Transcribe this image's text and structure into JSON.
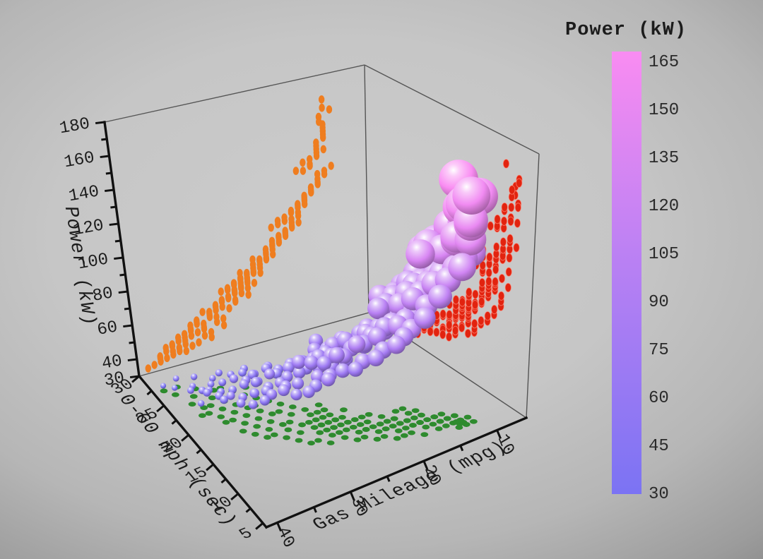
{
  "colorbar": {
    "title": "Power (kW)",
    "ticks": [
      165,
      150,
      135,
      120,
      105,
      90,
      75,
      60,
      45,
      30
    ],
    "min": 30,
    "max": 165
  },
  "style": {
    "axis_color": "#111111",
    "box_edge_color": "#555555",
    "text_color": "#1c1c1c",
    "left_wall_dot_color": "#ef7d1f",
    "right_wall_dot_color": "#e2230f",
    "right_wall_dot_rim": "#ff8f7d",
    "floor_dot_color": "#2e8b2e",
    "background_center": "#c6c6c6",
    "background_edge": "#8f8f8f"
  },
  "axes": {
    "power": {
      "label": "Power (kW)",
      "ticks": [
        180,
        160,
        140,
        120,
        100,
        80,
        60,
        40,
        30
      ],
      "minor_ticks": [
        50,
        70,
        90,
        110,
        130,
        150,
        170
      ],
      "range": [
        30,
        180
      ]
    },
    "accel": {
      "label": "0-60 mph (sec)",
      "ticks": [
        30,
        25,
        20,
        15,
        10,
        5
      ],
      "minor_ticks": [
        27.5,
        22.5,
        17.5,
        12.5,
        7.5
      ],
      "range": [
        4.3,
        30
      ]
    },
    "mileage": {
      "label": "Gas Mileage (mpg)",
      "ticks": [
        40,
        30,
        20,
        10
      ],
      "minor_ticks": [
        35,
        25,
        15
      ],
      "range": [
        41.5,
        6
      ]
    }
  },
  "chart_data": {
    "type": "scatter",
    "subtype": "3d-bubble-plot-with-wall-projections",
    "title": "",
    "xlabel": "Gas Mileage (mpg)",
    "ylabel": "0-60 mph (sec)",
    "zlabel": "Power (kW)",
    "x_range_displayed": [
      40,
      10
    ],
    "y_range_displayed": [
      5,
      30
    ],
    "z_range_displayed": [
      30,
      180
    ],
    "size_by": "power_kW",
    "color_by": "power_kW",
    "colormap": {
      "min": 30,
      "max": 165,
      "stops": [
        "#7b73f3",
        "#bc81f3",
        "#f98cf2"
      ]
    },
    "projections": {
      "left_wall": {
        "plane": "accel=30",
        "color": "#ef7d1f"
      },
      "right_wall": {
        "plane": "mileage=10",
        "color": "#e2230f"
      },
      "floor": {
        "plane": "power=30",
        "color": "#2e8b2e"
      }
    },
    "points_format": [
      "gas_mileage_mpg",
      "sec_0_60_mph",
      "power_kW"
    ],
    "points": [
      [
        36,
        21,
        42
      ],
      [
        34,
        19,
        45
      ],
      [
        38,
        24,
        38
      ],
      [
        32,
        17,
        52
      ],
      [
        30,
        16,
        55
      ],
      [
        33,
        20,
        48
      ],
      [
        35,
        22,
        40
      ],
      [
        37,
        25,
        36
      ],
      [
        31,
        18,
        50
      ],
      [
        29,
        15,
        58
      ],
      [
        28,
        16,
        60
      ],
      [
        34,
        23,
        41
      ],
      [
        36,
        26,
        37
      ],
      [
        32,
        21,
        46
      ],
      [
        30,
        19,
        53
      ],
      [
        27,
        14,
        62
      ],
      [
        33,
        18,
        49
      ],
      [
        35,
        20,
        44
      ],
      [
        38,
        27,
        35
      ],
      [
        29,
        17,
        56
      ],
      [
        31,
        20,
        47
      ],
      [
        26,
        15,
        63
      ],
      [
        28,
        18,
        57
      ],
      [
        34,
        21,
        43
      ],
      [
        36,
        23,
        39
      ],
      [
        32,
        19,
        51
      ],
      [
        30,
        17,
        54
      ],
      [
        27,
        16,
        61
      ],
      [
        25,
        14,
        65
      ],
      [
        33,
        22,
        45
      ],
      [
        29,
        19,
        52
      ],
      [
        31,
        21,
        48
      ],
      [
        35,
        24,
        38
      ],
      [
        37,
        22,
        42
      ],
      [
        26,
        17,
        59
      ],
      [
        28,
        20,
        50
      ],
      [
        24,
        15,
        64
      ],
      [
        30,
        22,
        44
      ],
      [
        32,
        24,
        40
      ],
      [
        34,
        25,
        37
      ],
      [
        25,
        16,
        62
      ],
      [
        27,
        19,
        55
      ],
      [
        29,
        21,
        49
      ],
      [
        31,
        23,
        43
      ],
      [
        23,
        14,
        66
      ],
      [
        33,
        25,
        39
      ],
      [
        26,
        18,
        58
      ],
      [
        28,
        22,
        46
      ],
      [
        24,
        17,
        60
      ],
      [
        30,
        24,
        41
      ],
      [
        26,
        14,
        68
      ],
      [
        24,
        13,
        72
      ],
      [
        22,
        12,
        78
      ],
      [
        28,
        16,
        66
      ],
      [
        25,
        13,
        74
      ],
      [
        23,
        12,
        80
      ],
      [
        21,
        11,
        84
      ],
      [
        27,
        15,
        67
      ],
      [
        20,
        11,
        88
      ],
      [
        24,
        14,
        70
      ],
      [
        22,
        13,
        76
      ],
      [
        26,
        15,
        69
      ],
      [
        19,
        10,
        90
      ],
      [
        23,
        13,
        75
      ],
      [
        21,
        12,
        82
      ],
      [
        25,
        14,
        71
      ],
      [
        18,
        10,
        92
      ],
      [
        22,
        12,
        79
      ],
      [
        24,
        15,
        73
      ],
      [
        20,
        11,
        86
      ],
      [
        26,
        16,
        65
      ],
      [
        19,
        11,
        89
      ],
      [
        23,
        14,
        77
      ],
      [
        21,
        13,
        81
      ],
      [
        17,
        10,
        94
      ],
      [
        25,
        15,
        70
      ],
      [
        22,
        14,
        74
      ],
      [
        18,
        11,
        91
      ],
      [
        24,
        16,
        68
      ],
      [
        20,
        12,
        85
      ],
      [
        23,
        15,
        72
      ],
      [
        19,
        12,
        87
      ],
      [
        21,
        14,
        78
      ],
      [
        17,
        11,
        93
      ],
      [
        25,
        17,
        66
      ],
      [
        18,
        12,
        90
      ],
      [
        22,
        16,
        71
      ],
      [
        20,
        14,
        80
      ],
      [
        16,
        10,
        95
      ],
      [
        24,
        18,
        67
      ],
      [
        18,
        11,
        98
      ],
      [
        16,
        10,
        104
      ],
      [
        20,
        12,
        96
      ],
      [
        15,
        9,
        110
      ],
      [
        17,
        10,
        102
      ],
      [
        14,
        9,
        114
      ],
      [
        19,
        12,
        97
      ],
      [
        16,
        11,
        106
      ],
      [
        13,
        8,
        118
      ],
      [
        18,
        12,
        100
      ],
      [
        15,
        10,
        108
      ],
      [
        12,
        8,
        122
      ],
      [
        17,
        11,
        103
      ],
      [
        14,
        9,
        112
      ],
      [
        16,
        12,
        105
      ],
      [
        13,
        9,
        116
      ],
      [
        19,
        13,
        99
      ],
      [
        15,
        11,
        107
      ],
      [
        12,
        9,
        120
      ],
      [
        14,
        10,
        111
      ],
      [
        16,
        13,
        101
      ],
      [
        13,
        10,
        115
      ],
      [
        11,
        8,
        124
      ],
      [
        17,
        13,
        98
      ],
      [
        15,
        12,
        109
      ],
      [
        14,
        9,
        128
      ],
      [
        13,
        8,
        136
      ],
      [
        16,
        10,
        126
      ],
      [
        12,
        8,
        142
      ],
      [
        13,
        9,
        132
      ],
      [
        12,
        7.5,
        150
      ],
      [
        15,
        10,
        130
      ],
      [
        13,
        9,
        138
      ],
      [
        12,
        7,
        146
      ],
      [
        14,
        10,
        127
      ],
      [
        12.5,
        7.5,
        155
      ],
      [
        13,
        8,
        134
      ],
      [
        12,
        7,
        144
      ],
      [
        12,
        8,
        148
      ],
      [
        15,
        11,
        125
      ],
      [
        12.5,
        8,
        152
      ],
      [
        14,
        10,
        131
      ],
      [
        13,
        9,
        140
      ],
      [
        12,
        7,
        160
      ],
      [
        12,
        9,
        165
      ],
      [
        35,
        18,
        46
      ],
      [
        33,
        16,
        51
      ],
      [
        31,
        15,
        57
      ],
      [
        29,
        13,
        59
      ],
      [
        37,
        23,
        40
      ],
      [
        39,
        26,
        34
      ],
      [
        40,
        27,
        33
      ],
      [
        38,
        22,
        37
      ],
      [
        36,
        20,
        43
      ],
      [
        34,
        17,
        47
      ],
      [
        32,
        16,
        53
      ],
      [
        30,
        14,
        56
      ],
      [
        28,
        13,
        61
      ],
      [
        26,
        13,
        64
      ],
      [
        27,
        12,
        66
      ],
      [
        25,
        12,
        68
      ],
      [
        24,
        11,
        70
      ],
      [
        23,
        11,
        73
      ],
      [
        22,
        10,
        76
      ],
      [
        21,
        10,
        79
      ],
      [
        20,
        9,
        83
      ],
      [
        19,
        9,
        86
      ],
      [
        18,
        9,
        89
      ],
      [
        17,
        8,
        96
      ],
      [
        16,
        9,
        99
      ],
      [
        15,
        8,
        105
      ],
      [
        14,
        8,
        113
      ],
      [
        13,
        7,
        121
      ],
      [
        12,
        7,
        135
      ],
      [
        11,
        7,
        158
      ]
    ]
  }
}
